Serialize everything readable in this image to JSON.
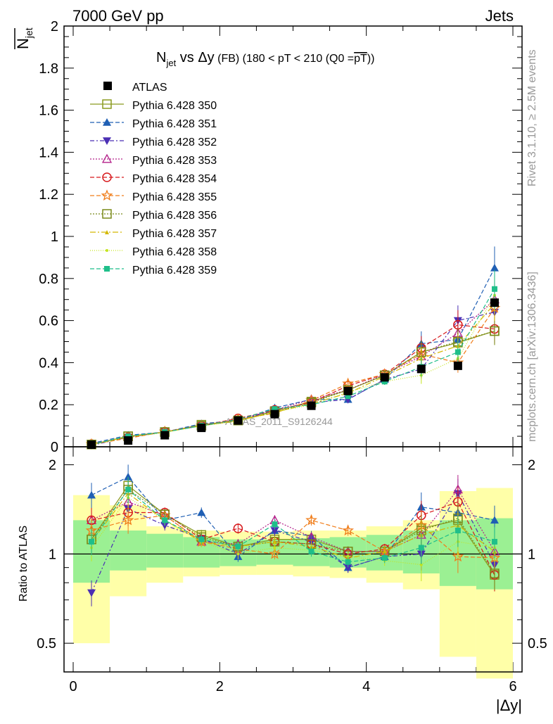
{
  "header": {
    "left": "7000 GeV pp",
    "right": "Jets"
  },
  "side_labels": {
    "rivet": "Rivet 3.1.10, ≥ 2.5M events",
    "mcplots": "mcplots.cern.ch [arXiv:1306.3436]"
  },
  "chart_data": {
    "type": "line",
    "title_parts": {
      "n": "N",
      "n_sub": "jet",
      "vs": " vs ",
      "delta_y": "Δy",
      "fb": " (FB) ",
      "range": "(180 < pT < 210 (Q0 =",
      "q0": "pT",
      "close": "))"
    },
    "ylabel_main": {
      "n": "N",
      "sub": "jet"
    },
    "ylabel_ratio": "Ratio to ATLAS",
    "xlabel": "|Δy|",
    "watermark": "ATLAS_2011_S9126244",
    "xlim": [
      0,
      6
    ],
    "ylim_main": [
      0,
      2
    ],
    "ylim_ratio": [
      0.4,
      2.3
    ],
    "x_ticks": [
      "0",
      "2",
      "4",
      "6"
    ],
    "y_ticks_main": [
      "0",
      "0.2",
      "0.4",
      "0.6",
      "0.8",
      "1",
      "1.2",
      "1.4",
      "1.6",
      "1.8",
      "2"
    ],
    "y_ticks_ratio": [
      "0.5",
      "1",
      "2"
    ],
    "x": [
      0.25,
      0.75,
      1.25,
      1.75,
      2.25,
      2.75,
      3.25,
      3.75,
      4.25,
      4.75,
      5.25,
      5.75
    ],
    "bin_edges": [
      0,
      0.5,
      1,
      1.5,
      2,
      2.5,
      3,
      3.5,
      4,
      4.5,
      5,
      5.5,
      6
    ],
    "atlas": {
      "name": "ATLAS",
      "values": [
        0.01,
        0.03,
        0.055,
        0.09,
        0.125,
        0.155,
        0.195,
        0.265,
        0.33,
        0.37,
        0.385,
        0.685
      ],
      "band_inner": [
        [
          0.8,
          1.3
        ],
        [
          0.88,
          1.2
        ],
        [
          0.9,
          1.17
        ],
        [
          0.9,
          1.14
        ],
        [
          0.91,
          1.12
        ],
        [
          0.92,
          1.12
        ],
        [
          0.91,
          1.13
        ],
        [
          0.9,
          1.14
        ],
        [
          0.88,
          1.16
        ],
        [
          0.86,
          1.2
        ],
        [
          0.78,
          1.3
        ],
        [
          0.76,
          1.32
        ]
      ],
      "band_outer": [
        [
          0.5,
          1.58
        ],
        [
          0.72,
          1.46
        ],
        [
          0.8,
          1.24
        ],
        [
          0.84,
          1.2
        ],
        [
          0.85,
          1.19
        ],
        [
          0.85,
          1.19
        ],
        [
          0.84,
          1.2
        ],
        [
          0.83,
          1.2
        ],
        [
          0.8,
          1.24
        ],
        [
          0.76,
          1.3
        ],
        [
          0.45,
          1.63
        ],
        [
          0.38,
          1.67
        ]
      ]
    },
    "series": [
      {
        "name": "Pythia 6.428 350",
        "color": "#8a9a1f",
        "marker": "square-open",
        "dash": "",
        "values": [
          0.011,
          0.05,
          0.07,
          0.105,
          0.125,
          0.17,
          0.215,
          0.27,
          0.34,
          0.45,
          0.495,
          0.55
        ],
        "ratio": [
          1.12,
          1.7,
          1.36,
          1.16,
          1.06,
          1.12,
          1.12,
          1.02,
          1.02,
          1.22,
          1.3,
          0.85
        ]
      },
      {
        "name": "Pythia 6.428 351",
        "color": "#1f5fb4",
        "marker": "triangle-up",
        "dash": "6,3",
        "values": [
          0.016,
          0.055,
          0.07,
          0.11,
          0.125,
          0.185,
          0.225,
          0.225,
          0.32,
          0.49,
          0.51,
          0.85
        ],
        "ratio": [
          1.58,
          1.82,
          1.3,
          1.38,
          0.98,
          1.2,
          1.15,
          0.9,
          0.98,
          1.44,
          1.38,
          1.3
        ]
      },
      {
        "name": "Pythia 6.428 352",
        "color": "#4b2fb4",
        "marker": "triangle-down",
        "dash": "6,3,2,3",
        "values": [
          0.007,
          0.045,
          0.07,
          0.1,
          0.125,
          0.175,
          0.21,
          0.225,
          0.32,
          0.37,
          0.6,
          0.64
        ],
        "ratio": [
          0.74,
          1.42,
          1.25,
          1.13,
          1.0,
          1.2,
          1.1,
          0.9,
          0.98,
          1.0,
          1.6,
          0.92
        ]
      },
      {
        "name": "Pythia 6.428 353",
        "color": "#b4218a",
        "marker": "triangle-open",
        "dash": "2,2",
        "values": [
          0.013,
          0.045,
          0.072,
          0.1,
          0.13,
          0.175,
          0.225,
          0.27,
          0.345,
          0.43,
          0.54,
          0.7
        ],
        "ratio": [
          1.3,
          1.5,
          1.35,
          1.1,
          1.08,
          1.3,
          1.14,
          1.02,
          1.02,
          1.16,
          1.65,
          1.02
        ]
      },
      {
        "name": "Pythia 6.428 354",
        "color": "#d7191c",
        "marker": "circle-open",
        "dash": "6,3",
        "values": [
          0.013,
          0.045,
          0.072,
          0.1,
          0.135,
          0.175,
          0.21,
          0.29,
          0.345,
          0.47,
          0.58,
          0.56
        ],
        "ratio": [
          1.3,
          1.38,
          1.38,
          1.12,
          1.22,
          1.1,
          1.08,
          1.0,
          1.04,
          1.35,
          1.5,
          0.85
        ]
      },
      {
        "name": "Pythia 6.428 355",
        "color": "#f07d1a",
        "marker": "star-open",
        "dash": "6,3",
        "values": [
          0.012,
          0.04,
          0.072,
          0.1,
          0.13,
          0.16,
          0.22,
          0.3,
          0.345,
          0.44,
          0.4,
          0.66
        ],
        "ratio": [
          1.2,
          1.3,
          1.35,
          1.1,
          1.04,
          1.0,
          1.3,
          1.2,
          1.02,
          1.25,
          0.98,
          0.97
        ]
      },
      {
        "name": "Pythia 6.428 356",
        "color": "#7a8a1a",
        "marker": "square-open",
        "dash": "2,2",
        "values": [
          0.011,
          0.05,
          0.07,
          0.1,
          0.125,
          0.165,
          0.21,
          0.27,
          0.34,
          0.45,
          0.5,
          0.55
        ],
        "ratio": [
          1.12,
          1.65,
          1.36,
          1.14,
          1.06,
          1.1,
          1.08,
          1.02,
          1.02,
          1.2,
          1.32,
          0.86
        ]
      },
      {
        "name": "Pythia 6.428 357",
        "color": "#d4b800",
        "marker": "triangle-small",
        "dash": "8,3,2,3",
        "values": [
          0.011,
          0.048,
          0.07,
          0.1,
          0.125,
          0.165,
          0.205,
          0.255,
          0.335,
          0.42,
          0.48,
          0.68
        ],
        "ratio": [
          1.1,
          1.6,
          1.3,
          1.1,
          1.06,
          1.1,
          1.06,
          0.97,
          1.02,
          1.16,
          1.25,
          1.02
        ]
      },
      {
        "name": "Pythia 6.428 358",
        "color": "#c4e41e",
        "marker": "dot",
        "dash": "1,2",
        "values": [
          0.01,
          0.045,
          0.068,
          0.1,
          0.12,
          0.165,
          0.2,
          0.26,
          0.31,
          0.34,
          0.42,
          0.72
        ],
        "ratio": [
          1.05,
          1.55,
          1.3,
          1.1,
          1.0,
          1.05,
          1.03,
          0.98,
          0.95,
          0.92,
          1.1,
          1.05
        ]
      },
      {
        "name": "Pythia 6.428 359",
        "color": "#1fbf8a",
        "marker": "square-filled",
        "dash": "6,3",
        "values": [
          0.011,
          0.05,
          0.07,
          0.1,
          0.13,
          0.18,
          0.2,
          0.24,
          0.31,
          0.38,
          0.45,
          0.75
        ],
        "ratio": [
          1.1,
          1.65,
          1.3,
          1.12,
          1.06,
          1.26,
          1.02,
          0.94,
          0.97,
          1.05,
          1.2,
          1.1
        ]
      }
    ]
  }
}
